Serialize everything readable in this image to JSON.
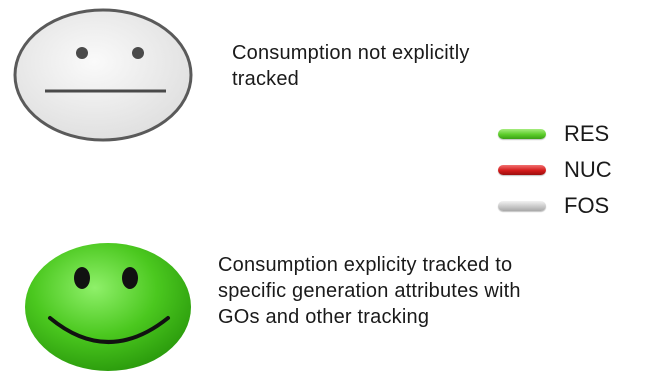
{
  "neutral": {
    "text": "Consumption not explicitly tracked"
  },
  "happy": {
    "text": "Consumption explicity tracked to specific generation attributes with GOs and other tracking"
  },
  "legend": {
    "items": [
      {
        "label": "RES",
        "color": "#5ccd2a"
      },
      {
        "label": "NUC",
        "color": "#d31a1a"
      },
      {
        "label": "FOS",
        "color": "#c9c9c9"
      }
    ]
  }
}
